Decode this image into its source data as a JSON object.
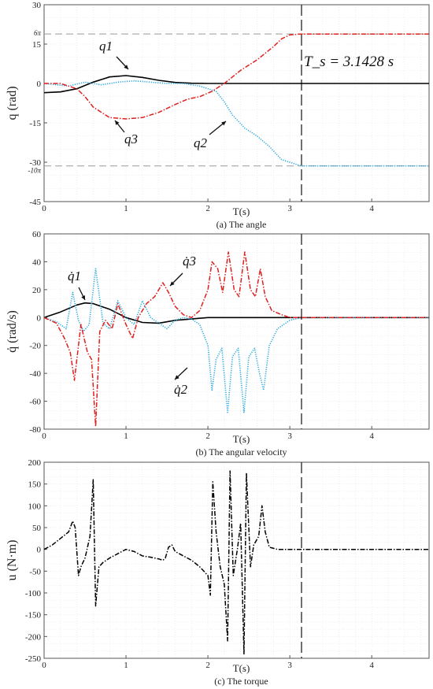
{
  "colors": {
    "axis": "#555555",
    "grid": "#e3e3e3",
    "q1": "#000000",
    "q2": "#29a8e0",
    "q3": "#e01f1f",
    "ref": "#999999",
    "vline": "#333333"
  },
  "chart_data": [
    {
      "type": "line",
      "title": "(a) The angle",
      "xlabel": "T(s)",
      "ylabel": "q (rad)",
      "xlim": [
        0,
        4.7
      ],
      "ylim": [
        -45,
        30
      ],
      "xticks": [
        "0",
        "1",
        "2",
        "3",
        "4"
      ],
      "yticks": [
        "30",
        "15",
        "0",
        "-15",
        "-30",
        "-45"
      ],
      "ref_labels": [
        {
          "label": "6π",
          "value": 18.85
        },
        {
          "label": "-10π",
          "value": -31.42
        }
      ],
      "vline": 3.1428,
      "annotation": "T_s = 3.1428 s",
      "series_labels": [
        "q1",
        "q2",
        "q3"
      ],
      "series": [
        {
          "name": "q1",
          "style": "solid",
          "color": "#000000",
          "x": [
            0,
            0.2,
            0.4,
            0.6,
            0.8,
            1.0,
            1.2,
            1.4,
            1.6,
            1.8,
            2.0,
            2.5,
            3.14,
            4.7
          ],
          "y": [
            -3.5,
            -3.2,
            -2.0,
            0.5,
            2.5,
            3.0,
            2.3,
            1.2,
            0.4,
            0.1,
            0,
            0,
            0,
            0
          ]
        },
        {
          "name": "q2",
          "style": "dotted",
          "color": "#29a8e0",
          "x": [
            0,
            0.3,
            0.5,
            0.7,
            0.9,
            1.1,
            1.3,
            1.5,
            1.7,
            1.9,
            2.1,
            2.2,
            2.3,
            2.45,
            2.6,
            2.75,
            2.9,
            3.14,
            4.7
          ],
          "y": [
            0,
            -1,
            0.5,
            -0.5,
            0.5,
            1,
            0.5,
            0,
            0,
            -1,
            -3,
            -7,
            -12,
            -17,
            -20,
            -24,
            -29,
            -31.4,
            -31.4
          ]
        },
        {
          "name": "q3",
          "style": "dashdot",
          "color": "#e01f1f",
          "x": [
            0,
            0.2,
            0.4,
            0.5,
            0.6,
            0.8,
            1.0,
            1.2,
            1.4,
            1.6,
            1.75,
            1.9,
            2.05,
            2.2,
            2.4,
            2.6,
            2.8,
            2.9,
            3.0,
            3.14,
            4.7
          ],
          "y": [
            0,
            0,
            -2,
            -5,
            -9,
            -13,
            -13.5,
            -13,
            -11,
            -8,
            -6,
            -5,
            -3,
            0,
            5,
            9,
            14,
            17,
            18.5,
            18.85,
            18.85
          ]
        }
      ]
    },
    {
      "type": "line",
      "title": "(b) The angular velocity",
      "xlabel": "T(s)",
      "ylabel": "q̇ (rad/s)",
      "xlim": [
        0,
        4.7
      ],
      "ylim": [
        -80,
        60
      ],
      "xticks": [
        "0",
        "1",
        "2",
        "3",
        "4"
      ],
      "yticks": [
        "60",
        "40",
        "20",
        "0",
        "-20",
        "-40",
        "-60",
        "-80"
      ],
      "vline": 3.1428,
      "series_labels": [
        "q̇1",
        "q̇2",
        "q̇3"
      ],
      "series": [
        {
          "name": "q̇1",
          "style": "solid",
          "color": "#000000",
          "x": [
            0,
            0.2,
            0.4,
            0.5,
            0.6,
            0.8,
            1.0,
            1.2,
            1.4,
            1.6,
            1.8,
            2.0,
            2.5,
            3.14,
            4.7
          ],
          "y": [
            0,
            4,
            9,
            10.5,
            10,
            6,
            0,
            -3.5,
            -4,
            -2,
            -1,
            0,
            0,
            0,
            0
          ]
        },
        {
          "name": "q̇2",
          "style": "dotted",
          "color": "#29a8e0",
          "x": [
            0,
            0.15,
            0.27,
            0.35,
            0.42,
            0.48,
            0.55,
            0.63,
            0.72,
            0.8,
            0.9,
            1.0,
            1.1,
            1.2,
            1.3,
            1.4,
            1.5,
            1.6,
            1.7,
            1.8,
            1.9,
            2.0,
            2.05,
            2.1,
            2.17,
            2.24,
            2.3,
            2.37,
            2.44,
            2.5,
            2.57,
            2.63,
            2.68,
            2.75,
            2.85,
            3.0,
            3.14,
            4.7
          ],
          "y": [
            0,
            -3,
            -8,
            18,
            -2,
            -10,
            -5,
            35,
            -4,
            -8,
            12,
            0,
            -5,
            12,
            0,
            -4,
            -8,
            -2,
            0,
            -1,
            -5,
            -20,
            -52,
            -30,
            -22,
            -68,
            -28,
            -22,
            -68,
            -28,
            -22,
            -40,
            -52,
            -20,
            -8,
            -2,
            0,
            0
          ]
        },
        {
          "name": "q̇3",
          "style": "dashdot",
          "color": "#e01f1f",
          "x": [
            0,
            0.15,
            0.25,
            0.32,
            0.37,
            0.45,
            0.53,
            0.58,
            0.63,
            0.68,
            0.75,
            0.83,
            0.9,
            1.0,
            1.08,
            1.15,
            1.25,
            1.35,
            1.45,
            1.52,
            1.6,
            1.7,
            1.8,
            1.9,
            2.0,
            2.05,
            2.12,
            2.18,
            2.25,
            2.32,
            2.38,
            2.45,
            2.52,
            2.58,
            2.64,
            2.7,
            2.78,
            2.9,
            3.0,
            3.14,
            4.7
          ],
          "y": [
            0,
            -4,
            -15,
            -25,
            -45,
            -5,
            -25,
            -30,
            -78,
            -10,
            -2,
            -8,
            10,
            -5,
            -15,
            0,
            10,
            15,
            25,
            18,
            8,
            2,
            0,
            5,
            20,
            40,
            35,
            18,
            47,
            20,
            15,
            47,
            20,
            15,
            35,
            15,
            5,
            2,
            0,
            0,
            0
          ]
        }
      ]
    },
    {
      "type": "line",
      "title": "(c) The torque",
      "xlabel": "T(s)",
      "ylabel": "u (N·m)",
      "xlim": [
        0,
        4.7
      ],
      "ylim": [
        -250,
        200
      ],
      "xticks": [
        "0",
        "1",
        "2",
        "3",
        "4"
      ],
      "yticks": [
        "200",
        "150",
        "100",
        "50",
        "0",
        "-50",
        "-100",
        "-150",
        "-200",
        "-250"
      ],
      "vline": 3.1428,
      "series": [
        {
          "name": "u",
          "style": "dashdot",
          "color": "#000000",
          "x": [
            0,
            0.1,
            0.2,
            0.3,
            0.35,
            0.38,
            0.42,
            0.45,
            0.5,
            0.56,
            0.6,
            0.63,
            0.67,
            0.72,
            0.8,
            0.9,
            1.0,
            1.1,
            1.2,
            1.3,
            1.4,
            1.45,
            1.48,
            1.52,
            1.56,
            1.6,
            1.7,
            1.8,
            1.9,
            2.0,
            2.03,
            2.06,
            2.1,
            2.15,
            2.2,
            2.24,
            2.27,
            2.31,
            2.36,
            2.4,
            2.44,
            2.47,
            2.52,
            2.56,
            2.62,
            2.66,
            2.7,
            2.75,
            2.85,
            3.0,
            3.14,
            4.7
          ],
          "y": [
            0,
            10,
            25,
            40,
            65,
            50,
            -60,
            -40,
            -20,
            30,
            160,
            -130,
            -40,
            -30,
            -20,
            -10,
            0,
            -5,
            -15,
            -18,
            -22,
            -25,
            -20,
            5,
            10,
            -5,
            -15,
            -25,
            -40,
            -60,
            -105,
            155,
            40,
            -40,
            -80,
            -210,
            180,
            -60,
            0,
            60,
            -240,
            175,
            -40,
            10,
            30,
            100,
            40,
            5,
            0,
            0,
            0,
            0
          ]
        }
      ]
    }
  ]
}
